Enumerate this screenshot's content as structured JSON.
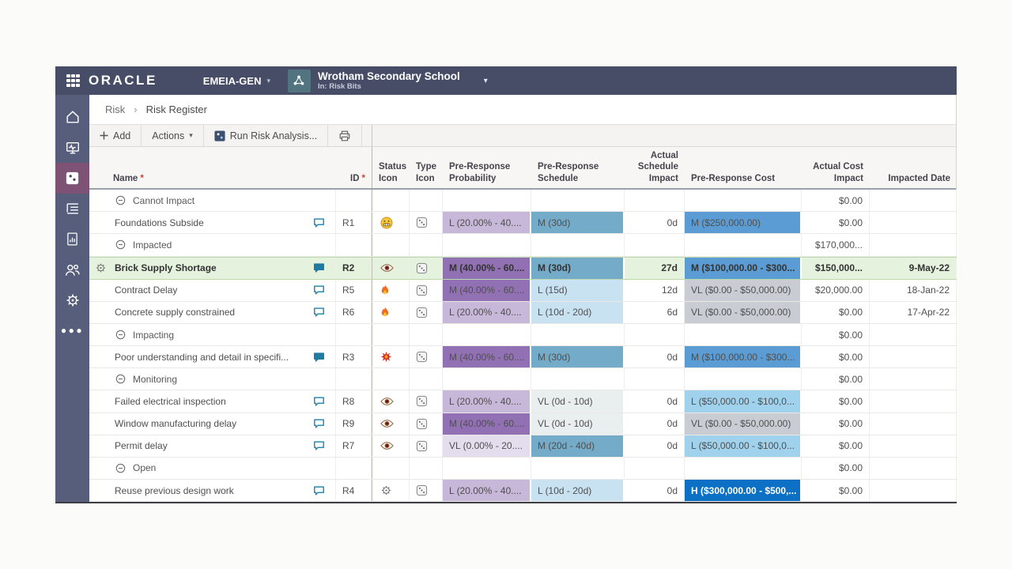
{
  "topbar": {
    "brand": "ORACLE",
    "workspace": "EMEIA-GEN",
    "project_name": "Wrotham Secondary School",
    "project_context": "In: Risk Bits"
  },
  "sidebar": {
    "items": [
      {
        "id": "home",
        "icon": "home",
        "active": false
      },
      {
        "id": "dashboard",
        "icon": "dashboard",
        "active": false
      },
      {
        "id": "risk",
        "icon": "dice",
        "active": true
      },
      {
        "id": "register",
        "icon": "list",
        "active": false
      },
      {
        "id": "reports",
        "icon": "chart-doc",
        "active": false
      },
      {
        "id": "team",
        "icon": "people",
        "active": false
      },
      {
        "id": "settings",
        "icon": "gear",
        "active": false
      },
      {
        "id": "more",
        "icon": "ellipsis",
        "active": false
      }
    ]
  },
  "breadcrumb": {
    "items": [
      "Risk",
      "Risk Register"
    ]
  },
  "toolbar": {
    "buttons": [
      {
        "id": "add",
        "label": "Add",
        "icon": "plus"
      },
      {
        "id": "actions",
        "label": "Actions",
        "caret": true
      },
      {
        "id": "run-risk-analysis",
        "label": "Run Risk Analysis...",
        "icon": "run-analysis"
      },
      {
        "id": "print",
        "label": "",
        "icon": "printer"
      }
    ]
  },
  "table": {
    "columns": [
      {
        "key": "name",
        "label": "Name",
        "required": true
      },
      {
        "key": "id",
        "label": "ID",
        "required": true,
        "align": "right"
      },
      {
        "key": "status",
        "label": "Status Icon"
      },
      {
        "key": "type",
        "label": "Type Icon"
      },
      {
        "key": "prob",
        "label": "Pre-Response Probability"
      },
      {
        "key": "sched",
        "label": "Pre-Response Schedule"
      },
      {
        "key": "actual_sched",
        "label": "Actual Schedule Impact",
        "align": "right"
      },
      {
        "key": "cost",
        "label": "Pre-Response Cost"
      },
      {
        "key": "actual_cost",
        "label": "Actual Cost Impact",
        "align": "right"
      },
      {
        "key": "date",
        "label": "Impacted Date",
        "align": "right"
      }
    ],
    "rows": [
      {
        "type": "group",
        "name": "Cannot Impact",
        "actual_cost": "$0.00"
      },
      {
        "type": "risk",
        "name": "Foundations Subside",
        "id": "R1",
        "bubble": "outline",
        "status_icon": "neutral-face",
        "type_icon": "dice",
        "prob": {
          "label": "L (20.00% - 40....",
          "level": "L"
        },
        "sched": {
          "label": "M (30d)",
          "level": "M"
        },
        "actual_sched": "0d",
        "cost": {
          "label": "M ($250,000.00)",
          "level": "M"
        },
        "actual_cost": "$0.00",
        "date": ""
      },
      {
        "type": "group",
        "name": "Impacted",
        "actual_cost": "$170,000..."
      },
      {
        "type": "risk",
        "selected": true,
        "name": "Brick Supply Shortage",
        "id": "R2",
        "bubble": "filled",
        "status_icon": "eye",
        "type_icon": "dice",
        "prob": {
          "label": "M (40.00% - 60....",
          "level": "M"
        },
        "sched": {
          "label": "M (30d)",
          "level": "M"
        },
        "actual_sched": "27d",
        "cost": {
          "label": "M ($100,000.00 - $300...",
          "level": "M"
        },
        "actual_cost": "$150,000...",
        "date": "9-May-22"
      },
      {
        "type": "risk",
        "name": "Contract Delay",
        "id": "R5",
        "bubble": "outline",
        "status_icon": "flame",
        "type_icon": "dice",
        "prob": {
          "label": "M (40.00% - 60....",
          "level": "M"
        },
        "sched": {
          "label": "L (15d)",
          "level": "L"
        },
        "actual_sched": "12d",
        "cost": {
          "label": "VL ($0.00 - $50,000.00)",
          "level": "VL"
        },
        "actual_cost": "$20,000.00",
        "date": "18-Jan-22"
      },
      {
        "type": "risk",
        "name": "Concrete supply constrained",
        "id": "R6",
        "bubble": "outline",
        "status_icon": "flame",
        "type_icon": "dice",
        "prob": {
          "label": "L (20.00% - 40....",
          "level": "L"
        },
        "sched": {
          "label": "L (10d - 20d)",
          "level": "L"
        },
        "actual_sched": "6d",
        "cost": {
          "label": "VL ($0.00 - $50,000.00)",
          "level": "VL"
        },
        "actual_cost": "$0.00",
        "date": "17-Apr-22"
      },
      {
        "type": "group",
        "name": "Impacting",
        "actual_cost": "$0.00"
      },
      {
        "type": "risk",
        "name": "Poor understanding and detail in specifi...",
        "id": "R3",
        "bubble": "filled",
        "status_icon": "burst",
        "type_icon": "dice",
        "prob": {
          "label": "M (40.00% - 60....",
          "level": "M"
        },
        "sched": {
          "label": "M (30d)",
          "level": "M"
        },
        "actual_sched": "0d",
        "cost": {
          "label": "M ($100,000.00 - $300...",
          "level": "M"
        },
        "actual_cost": "$0.00",
        "date": ""
      },
      {
        "type": "group",
        "name": "Monitoring",
        "actual_cost": "$0.00"
      },
      {
        "type": "risk",
        "name": "Failed electrical inspection",
        "id": "R8",
        "bubble": "outline",
        "status_icon": "eye",
        "type_icon": "dice",
        "prob": {
          "label": "L (20.00% - 40....",
          "level": "L"
        },
        "sched": {
          "label": "VL (0d - 10d)",
          "level": "VL"
        },
        "actual_sched": "0d",
        "cost": {
          "label": "L ($50,000.00 - $100,0...",
          "level": "L"
        },
        "actual_cost": "$0.00",
        "date": ""
      },
      {
        "type": "risk",
        "name": "Window manufacturing delay",
        "id": "R9",
        "bubble": "outline",
        "status_icon": "eye",
        "type_icon": "dice",
        "prob": {
          "label": "M (40.00% - 60....",
          "level": "M"
        },
        "sched": {
          "label": "VL (0d - 10d)",
          "level": "VL"
        },
        "actual_sched": "0d",
        "cost": {
          "label": "VL ($0.00 - $50,000.00)",
          "level": "VL"
        },
        "actual_cost": "$0.00",
        "date": ""
      },
      {
        "type": "risk",
        "name": "Permit delay",
        "id": "R7",
        "bubble": "outline",
        "status_icon": "eye",
        "type_icon": "dice",
        "prob": {
          "label": "VL (0.00% - 20....",
          "level": "VL"
        },
        "sched": {
          "label": "M (20d - 40d)",
          "level": "M"
        },
        "actual_sched": "0d",
        "cost": {
          "label": "L ($50,000.00 - $100,0...",
          "level": "L"
        },
        "actual_cost": "$0.00",
        "date": ""
      },
      {
        "type": "group",
        "name": "Open",
        "actual_cost": "$0.00"
      },
      {
        "type": "risk",
        "name": "Reuse previous design work",
        "id": "R4",
        "bubble": "outline",
        "status_icon": "gear",
        "type_icon": "dice",
        "prob": {
          "label": "L (20.00% - 40....",
          "level": "L"
        },
        "sched": {
          "label": "L (10d - 20d)",
          "level": "L"
        },
        "actual_sched": "0d",
        "cost": {
          "label": "H ($300,000.00 - $500,...",
          "level": "H"
        },
        "actual_cost": "$0.00",
        "date": ""
      }
    ]
  },
  "colors": {
    "topbar_bg": "#474d66",
    "sidebar_bg": "#575e7b",
    "sidebar_active_bg": "#7d5274",
    "selected_row_bg": "#e5f2de",
    "required_asterisk": "#c74634",
    "discussion_icon": "#2b8bb0",
    "prob_L": "#c7b7d8",
    "prob_M": "#9170b4",
    "prob_VL": "#e4ddee",
    "sched_M": "#74abc9",
    "sched_L": "#c9e2f2",
    "sched_VL": "#e9efee",
    "cost_M": "#5b9cd4",
    "cost_L": "#a0d2ee",
    "cost_VL": "#c9cdd3",
    "cost_H": "#0c70c4"
  }
}
